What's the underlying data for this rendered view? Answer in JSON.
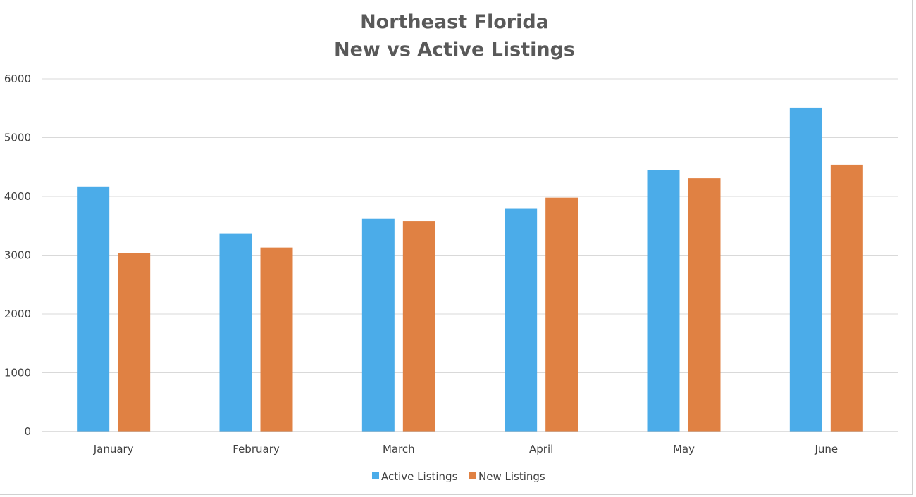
{
  "chart_data": {
    "type": "bar",
    "title_lines": [
      "Northeast Florida",
      "New vs Active Listings"
    ],
    "categories": [
      "January",
      "February",
      "March",
      "April",
      "May",
      "June"
    ],
    "series": [
      {
        "name": "Active Listings",
        "color": "#4BACE9",
        "values": [
          4170,
          3370,
          3620,
          3790,
          4450,
          5510
        ]
      },
      {
        "name": "New Listings",
        "color": "#E08143",
        "values": [
          3030,
          3130,
          3580,
          3980,
          4310,
          4540
        ]
      }
    ],
    "ylim": [
      0,
      6000
    ],
    "yticks": [
      "0",
      "1000",
      "2000",
      "3000",
      "4000",
      "5000",
      "6000"
    ],
    "grid": true,
    "legend": "bottom-center"
  }
}
